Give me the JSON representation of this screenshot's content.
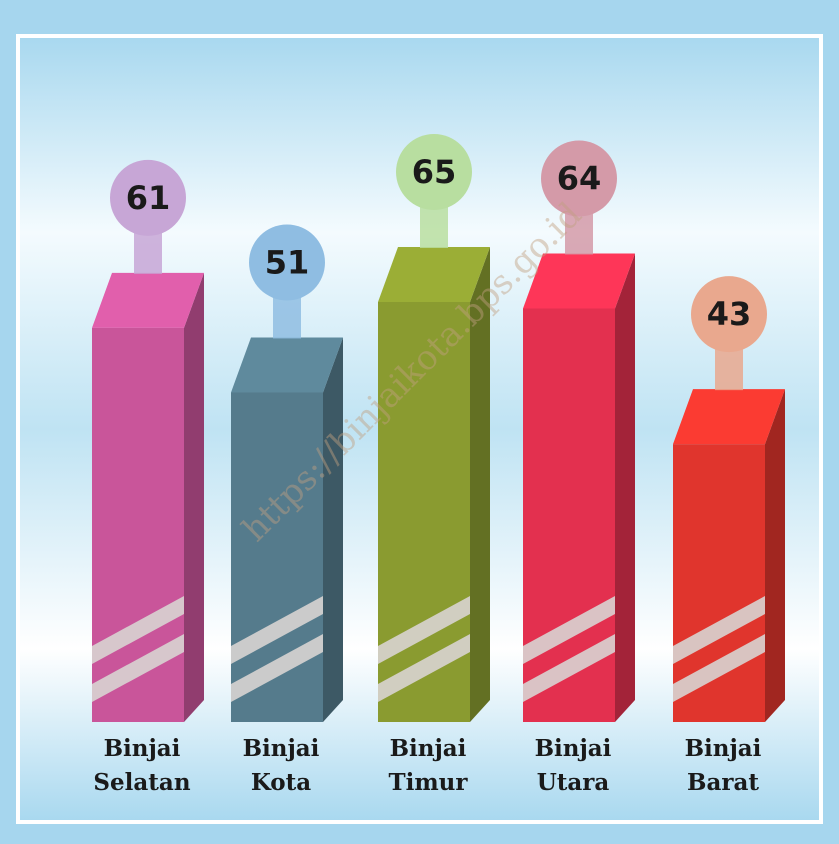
{
  "chart_data": {
    "type": "bar",
    "categories": [
      "Binjai Selatan",
      "Binjai Kota",
      "Binjai Timur",
      "Binjai Utara",
      "Binjai Barat"
    ],
    "values": [
      61,
      51,
      65,
      64,
      43
    ],
    "colors": [
      "#c9559a",
      "#557b8c",
      "#8a9b30",
      "#e3304f",
      "#e0352d"
    ],
    "balloon_colors": [
      "#c7a6d6",
      "#8fbde2",
      "#b8dea0",
      "#d49aa8",
      "#e9a88e"
    ],
    "watermark": "https://binjaikota.bps.go.id"
  }
}
